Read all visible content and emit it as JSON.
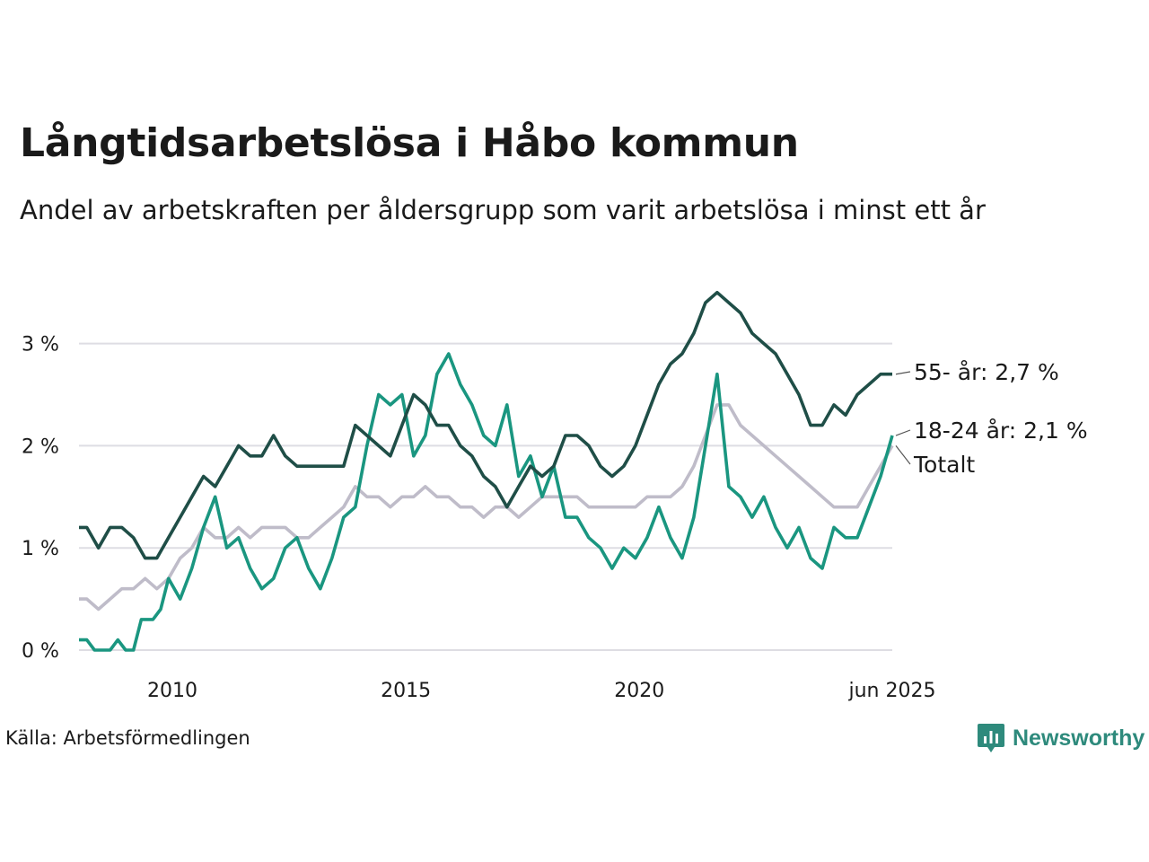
{
  "chart_data": {
    "type": "line",
    "title": "Långtidsarbetslösa i Håbo kommun",
    "subtitle": "Andel av arbetskraften per åldersgrupp som varit arbetslösa i minst ett år",
    "source": "Källa: Arbetsförmedlingen",
    "brand": "Newsworthy",
    "xlim": [
      "2008-01",
      "2025-06"
    ],
    "ylim": [
      0,
      3.8
    ],
    "yticks": [
      {
        "value": 0,
        "label": "0 %"
      },
      {
        "value": 1,
        "label": "1 %"
      },
      {
        "value": 2,
        "label": "2 %"
      },
      {
        "value": 3,
        "label": "3 %"
      }
    ],
    "xticks": [
      {
        "value": "2010-01",
        "label": "2010"
      },
      {
        "value": "2015-01",
        "label": "2015"
      },
      {
        "value": "2020-01",
        "label": "2020"
      },
      {
        "value": "2025-06",
        "label": "jun 2025"
      }
    ],
    "grid": true,
    "legend": "end labels",
    "series": [
      {
        "name": "Totalt",
        "label": "Totalt",
        "color": "#bfbcc9",
        "points": [
          [
            "2008-01",
            0.5
          ],
          [
            "2008-03",
            0.5
          ],
          [
            "2008-06",
            0.4
          ],
          [
            "2008-09",
            0.5
          ],
          [
            "2008-12",
            0.6
          ],
          [
            "2009-03",
            0.6
          ],
          [
            "2009-06",
            0.7
          ],
          [
            "2009-09",
            0.6
          ],
          [
            "2009-12",
            0.7
          ],
          [
            "2010-03",
            0.9
          ],
          [
            "2010-06",
            1.0
          ],
          [
            "2010-09",
            1.2
          ],
          [
            "2010-12",
            1.1
          ],
          [
            "2011-03",
            1.1
          ],
          [
            "2011-06",
            1.2
          ],
          [
            "2011-09",
            1.1
          ],
          [
            "2011-12",
            1.2
          ],
          [
            "2012-03",
            1.2
          ],
          [
            "2012-06",
            1.2
          ],
          [
            "2012-09",
            1.1
          ],
          [
            "2012-12",
            1.1
          ],
          [
            "2013-03",
            1.2
          ],
          [
            "2013-06",
            1.3
          ],
          [
            "2013-09",
            1.4
          ],
          [
            "2013-12",
            1.6
          ],
          [
            "2014-03",
            1.5
          ],
          [
            "2014-06",
            1.5
          ],
          [
            "2014-09",
            1.4
          ],
          [
            "2014-12",
            1.5
          ],
          [
            "2015-03",
            1.5
          ],
          [
            "2015-06",
            1.6
          ],
          [
            "2015-09",
            1.5
          ],
          [
            "2015-12",
            1.5
          ],
          [
            "2016-03",
            1.4
          ],
          [
            "2016-06",
            1.4
          ],
          [
            "2016-09",
            1.3
          ],
          [
            "2016-12",
            1.4
          ],
          [
            "2017-03",
            1.4
          ],
          [
            "2017-06",
            1.3
          ],
          [
            "2017-09",
            1.4
          ],
          [
            "2017-12",
            1.5
          ],
          [
            "2018-03",
            1.5
          ],
          [
            "2018-06",
            1.5
          ],
          [
            "2018-09",
            1.5
          ],
          [
            "2018-12",
            1.4
          ],
          [
            "2019-03",
            1.4
          ],
          [
            "2019-06",
            1.4
          ],
          [
            "2019-09",
            1.4
          ],
          [
            "2019-12",
            1.4
          ],
          [
            "2020-03",
            1.5
          ],
          [
            "2020-06",
            1.5
          ],
          [
            "2020-09",
            1.5
          ],
          [
            "2020-12",
            1.6
          ],
          [
            "2021-03",
            1.8
          ],
          [
            "2021-06",
            2.1
          ],
          [
            "2021-09",
            2.4
          ],
          [
            "2021-12",
            2.4
          ],
          [
            "2022-03",
            2.2
          ],
          [
            "2022-06",
            2.1
          ],
          [
            "2022-09",
            2.0
          ],
          [
            "2022-12",
            1.9
          ],
          [
            "2023-03",
            1.8
          ],
          [
            "2023-06",
            1.7
          ],
          [
            "2023-09",
            1.6
          ],
          [
            "2023-12",
            1.5
          ],
          [
            "2024-03",
            1.4
          ],
          [
            "2024-06",
            1.4
          ],
          [
            "2024-09",
            1.4
          ],
          [
            "2024-12",
            1.6
          ],
          [
            "2025-03",
            1.8
          ],
          [
            "2025-06",
            2.0
          ]
        ]
      },
      {
        "name": "18-24 år",
        "label": "18-24 år: 2,1 %",
        "color": "#1a9680",
        "points": [
          [
            "2008-01",
            0.1
          ],
          [
            "2008-03",
            0.1
          ],
          [
            "2008-05",
            0.0
          ],
          [
            "2008-09",
            0.0
          ],
          [
            "2008-11",
            0.1
          ],
          [
            "2009-01",
            0.0
          ],
          [
            "2009-03",
            0.0
          ],
          [
            "2009-05",
            0.3
          ],
          [
            "2009-08",
            0.3
          ],
          [
            "2009-10",
            0.4
          ],
          [
            "2009-12",
            0.7
          ],
          [
            "2010-03",
            0.5
          ],
          [
            "2010-06",
            0.8
          ],
          [
            "2010-09",
            1.2
          ],
          [
            "2010-12",
            1.5
          ],
          [
            "2011-03",
            1.0
          ],
          [
            "2011-06",
            1.1
          ],
          [
            "2011-09",
            0.8
          ],
          [
            "2011-12",
            0.6
          ],
          [
            "2012-03",
            0.7
          ],
          [
            "2012-06",
            1.0
          ],
          [
            "2012-09",
            1.1
          ],
          [
            "2012-12",
            0.8
          ],
          [
            "2013-03",
            0.6
          ],
          [
            "2013-06",
            0.9
          ],
          [
            "2013-09",
            1.3
          ],
          [
            "2013-12",
            1.4
          ],
          [
            "2014-03",
            2.0
          ],
          [
            "2014-06",
            2.5
          ],
          [
            "2014-09",
            2.4
          ],
          [
            "2014-12",
            2.5
          ],
          [
            "2015-03",
            1.9
          ],
          [
            "2015-06",
            2.1
          ],
          [
            "2015-09",
            2.7
          ],
          [
            "2015-12",
            2.9
          ],
          [
            "2016-03",
            2.6
          ],
          [
            "2016-06",
            2.4
          ],
          [
            "2016-09",
            2.1
          ],
          [
            "2016-12",
            2.0
          ],
          [
            "2017-03",
            2.4
          ],
          [
            "2017-06",
            1.7
          ],
          [
            "2017-09",
            1.9
          ],
          [
            "2017-12",
            1.5
          ],
          [
            "2018-03",
            1.8
          ],
          [
            "2018-06",
            1.3
          ],
          [
            "2018-09",
            1.3
          ],
          [
            "2018-12",
            1.1
          ],
          [
            "2019-03",
            1.0
          ],
          [
            "2019-06",
            0.8
          ],
          [
            "2019-09",
            1.0
          ],
          [
            "2019-12",
            0.9
          ],
          [
            "2020-03",
            1.1
          ],
          [
            "2020-06",
            1.4
          ],
          [
            "2020-09",
            1.1
          ],
          [
            "2020-12",
            0.9
          ],
          [
            "2021-03",
            1.3
          ],
          [
            "2021-06",
            2.0
          ],
          [
            "2021-09",
            2.7
          ],
          [
            "2021-12",
            1.6
          ],
          [
            "2022-03",
            1.5
          ],
          [
            "2022-06",
            1.3
          ],
          [
            "2022-09",
            1.5
          ],
          [
            "2022-12",
            1.2
          ],
          [
            "2023-03",
            1.0
          ],
          [
            "2023-06",
            1.2
          ],
          [
            "2023-09",
            0.9
          ],
          [
            "2023-12",
            0.8
          ],
          [
            "2024-03",
            1.2
          ],
          [
            "2024-06",
            1.1
          ],
          [
            "2024-09",
            1.1
          ],
          [
            "2024-12",
            1.4
          ],
          [
            "2025-03",
            1.7
          ],
          [
            "2025-06",
            2.1
          ]
        ]
      },
      {
        "name": "55- år",
        "label": "55- år: 2,7 %",
        "color": "#1f4e47",
        "points": [
          [
            "2008-01",
            1.2
          ],
          [
            "2008-03",
            1.2
          ],
          [
            "2008-06",
            1.0
          ],
          [
            "2008-09",
            1.2
          ],
          [
            "2008-12",
            1.2
          ],
          [
            "2009-03",
            1.1
          ],
          [
            "2009-06",
            0.9
          ],
          [
            "2009-09",
            0.9
          ],
          [
            "2009-12",
            1.1
          ],
          [
            "2010-03",
            1.3
          ],
          [
            "2010-06",
            1.5
          ],
          [
            "2010-09",
            1.7
          ],
          [
            "2010-12",
            1.6
          ],
          [
            "2011-03",
            1.8
          ],
          [
            "2011-06",
            2.0
          ],
          [
            "2011-09",
            1.9
          ],
          [
            "2011-12",
            1.9
          ],
          [
            "2012-03",
            2.1
          ],
          [
            "2012-06",
            1.9
          ],
          [
            "2012-09",
            1.8
          ],
          [
            "2012-12",
            1.8
          ],
          [
            "2013-03",
            1.8
          ],
          [
            "2013-06",
            1.8
          ],
          [
            "2013-09",
            1.8
          ],
          [
            "2013-12",
            2.2
          ],
          [
            "2014-03",
            2.1
          ],
          [
            "2014-06",
            2.0
          ],
          [
            "2014-09",
            1.9
          ],
          [
            "2014-12",
            2.2
          ],
          [
            "2015-03",
            2.5
          ],
          [
            "2015-06",
            2.4
          ],
          [
            "2015-09",
            2.2
          ],
          [
            "2015-12",
            2.2
          ],
          [
            "2016-03",
            2.0
          ],
          [
            "2016-06",
            1.9
          ],
          [
            "2016-09",
            1.7
          ],
          [
            "2016-12",
            1.6
          ],
          [
            "2017-03",
            1.4
          ],
          [
            "2017-06",
            1.6
          ],
          [
            "2017-09",
            1.8
          ],
          [
            "2017-12",
            1.7
          ],
          [
            "2018-03",
            1.8
          ],
          [
            "2018-06",
            2.1
          ],
          [
            "2018-09",
            2.1
          ],
          [
            "2018-12",
            2.0
          ],
          [
            "2019-03",
            1.8
          ],
          [
            "2019-06",
            1.7
          ],
          [
            "2019-09",
            1.8
          ],
          [
            "2019-12",
            2.0
          ],
          [
            "2020-03",
            2.3
          ],
          [
            "2020-06",
            2.6
          ],
          [
            "2020-09",
            2.8
          ],
          [
            "2020-12",
            2.9
          ],
          [
            "2021-03",
            3.1
          ],
          [
            "2021-06",
            3.4
          ],
          [
            "2021-09",
            3.5
          ],
          [
            "2021-12",
            3.4
          ],
          [
            "2022-03",
            3.3
          ],
          [
            "2022-06",
            3.1
          ],
          [
            "2022-09",
            3.0
          ],
          [
            "2022-12",
            2.9
          ],
          [
            "2023-03",
            2.7
          ],
          [
            "2023-06",
            2.5
          ],
          [
            "2023-09",
            2.2
          ],
          [
            "2023-12",
            2.2
          ],
          [
            "2024-03",
            2.4
          ],
          [
            "2024-06",
            2.3
          ],
          [
            "2024-09",
            2.5
          ],
          [
            "2024-12",
            2.6
          ],
          [
            "2025-03",
            2.7
          ],
          [
            "2025-06",
            2.7
          ]
        ]
      }
    ]
  }
}
